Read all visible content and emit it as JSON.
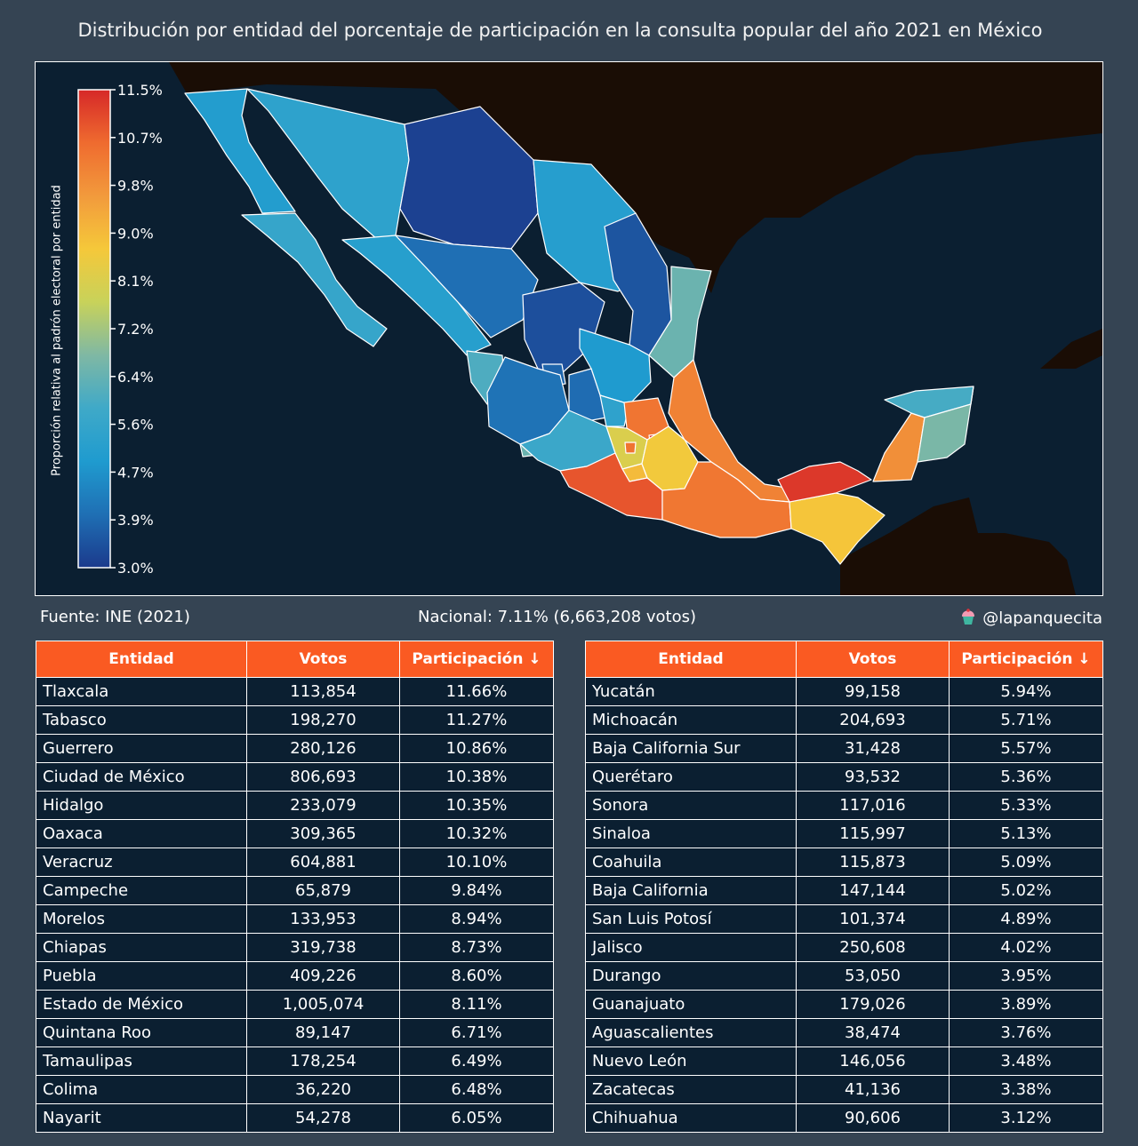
{
  "title": "Distribución por entidad del porcentaje de participación en la consulta popular del año 2021 en México",
  "colorbar": {
    "label": "Proporción relativa al padrón electoral por entidad",
    "ticks": [
      "11.5%",
      "10.7%",
      "9.8%",
      "9.0%",
      "8.1%",
      "7.2%",
      "6.4%",
      "5.6%",
      "4.7%",
      "3.9%",
      "3.0%"
    ],
    "min": 3.0,
    "max": 11.5,
    "colors": [
      "#1b3a8c",
      "#1f6fb4",
      "#1f9bcf",
      "#3fa9c8",
      "#7fb8a4",
      "#c8d25a",
      "#f5c83a",
      "#f29a3c",
      "#ef6b2f",
      "#d62828"
    ]
  },
  "map_colors": {
    "ocean": "#0b1f31",
    "land_outside": "#1a0d05",
    "border": "#ffffff"
  },
  "footer": {
    "source": "Fuente: INE (2021)",
    "national": "Nacional: 7.11% (6,663,208 votos)",
    "credit": "@lapanquecita"
  },
  "table_headers": [
    "Entidad",
    "Votos",
    "Participación ↓"
  ],
  "table_left": [
    {
      "entidad": "Tlaxcala",
      "votos": "113,854",
      "pct": "11.66%"
    },
    {
      "entidad": "Tabasco",
      "votos": "198,270",
      "pct": "11.27%"
    },
    {
      "entidad": "Guerrero",
      "votos": "280,126",
      "pct": "10.86%"
    },
    {
      "entidad": "Ciudad de México",
      "votos": "806,693",
      "pct": "10.38%"
    },
    {
      "entidad": "Hidalgo",
      "votos": "233,079",
      "pct": "10.35%"
    },
    {
      "entidad": "Oaxaca",
      "votos": "309,365",
      "pct": "10.32%"
    },
    {
      "entidad": "Veracruz",
      "votos": "604,881",
      "pct": "10.10%"
    },
    {
      "entidad": "Campeche",
      "votos": "65,879",
      "pct": "9.84%"
    },
    {
      "entidad": "Morelos",
      "votos": "133,953",
      "pct": "8.94%"
    },
    {
      "entidad": "Chiapas",
      "votos": "319,738",
      "pct": "8.73%"
    },
    {
      "entidad": "Puebla",
      "votos": "409,226",
      "pct": "8.60%"
    },
    {
      "entidad": "Estado de México",
      "votos": "1,005,074",
      "pct": "8.11%"
    },
    {
      "entidad": "Quintana Roo",
      "votos": "89,147",
      "pct": "6.71%"
    },
    {
      "entidad": "Tamaulipas",
      "votos": "178,254",
      "pct": "6.49%"
    },
    {
      "entidad": "Colima",
      "votos": "36,220",
      "pct": "6.48%"
    },
    {
      "entidad": "Nayarit",
      "votos": "54,278",
      "pct": "6.05%"
    }
  ],
  "table_right": [
    {
      "entidad": "Yucatán",
      "votos": "99,158",
      "pct": "5.94%"
    },
    {
      "entidad": "Michoacán",
      "votos": "204,693",
      "pct": "5.71%"
    },
    {
      "entidad": "Baja California Sur",
      "votos": "31,428",
      "pct": "5.57%"
    },
    {
      "entidad": "Querétaro",
      "votos": "93,532",
      "pct": "5.36%"
    },
    {
      "entidad": "Sonora",
      "votos": "117,016",
      "pct": "5.33%"
    },
    {
      "entidad": "Sinaloa",
      "votos": "115,997",
      "pct": "5.13%"
    },
    {
      "entidad": "Coahuila",
      "votos": "115,873",
      "pct": "5.09%"
    },
    {
      "entidad": "Baja California",
      "votos": "147,144",
      "pct": "5.02%"
    },
    {
      "entidad": "San Luis Potosí",
      "votos": "101,374",
      "pct": "4.89%"
    },
    {
      "entidad": "Jalisco",
      "votos": "250,608",
      "pct": "4.02%"
    },
    {
      "entidad": "Durango",
      "votos": "53,050",
      "pct": "3.95%"
    },
    {
      "entidad": "Guanajuato",
      "votos": "179,026",
      "pct": "3.89%"
    },
    {
      "entidad": "Aguascalientes",
      "votos": "38,474",
      "pct": "3.76%"
    },
    {
      "entidad": "Nuevo León",
      "votos": "146,056",
      "pct": "3.48%"
    },
    {
      "entidad": "Zacatecas",
      "votos": "41,136",
      "pct": "3.38%"
    },
    {
      "entidad": "Chihuahua",
      "votos": "90,606",
      "pct": "3.12%"
    }
  ]
}
